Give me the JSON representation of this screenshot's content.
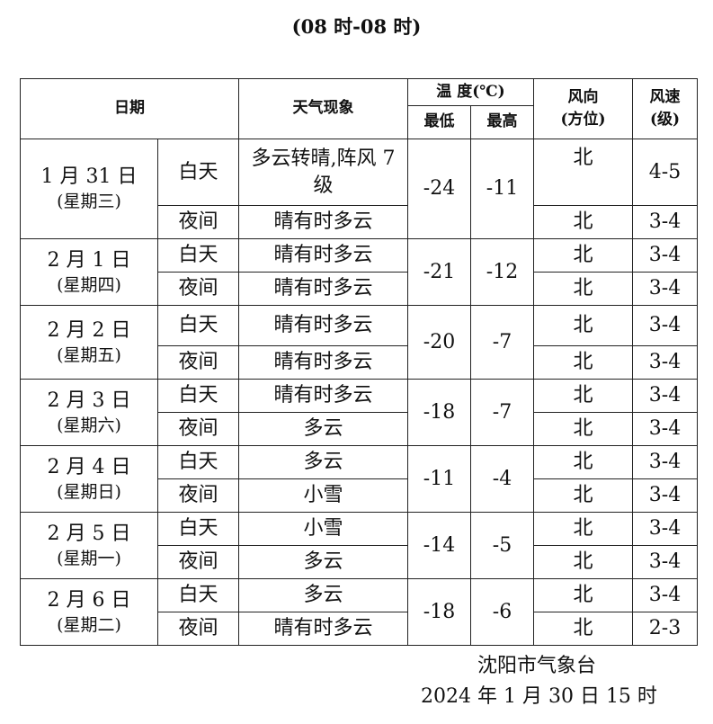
{
  "subtitle": "(08 时-08 时)",
  "headers": {
    "date": "日期",
    "weather": "天气现象",
    "temp": "温  度(℃)",
    "low": "最低",
    "high": "最高",
    "wind_dir": "风向",
    "wind_dir_unit": "(方位)",
    "wind_speed": "风速",
    "wind_speed_unit": "(级)"
  },
  "days": [
    {
      "date": "1 月 31 日",
      "weekday": "(星期三)",
      "low": "-24",
      "high": "-11",
      "periods": [
        {
          "label": "白天",
          "weather": "多云转晴,阵风 7 级",
          "dir": "北",
          "speed": "4-5"
        },
        {
          "label": "夜间",
          "weather": "晴有时多云",
          "dir": "北",
          "speed": "3-4"
        }
      ]
    },
    {
      "date": "2 月 1 日",
      "weekday": "(星期四)",
      "low": "-21",
      "high": "-12",
      "periods": [
        {
          "label": "白天",
          "weather": "晴有时多云",
          "dir": "北",
          "speed": "3-4"
        },
        {
          "label": "夜间",
          "weather": "晴有时多云",
          "dir": "北",
          "speed": "3-4"
        }
      ]
    },
    {
      "date": "2 月 2 日",
      "weekday": "(星期五)",
      "low": "-20",
      "high": "-7",
      "periods": [
        {
          "label": "白天",
          "weather": "晴有时多云",
          "dir": "北",
          "speed": "3-4"
        },
        {
          "label": "夜间",
          "weather": "晴有时多云",
          "dir": "北",
          "speed": "3-4"
        }
      ]
    },
    {
      "date": "2 月 3 日",
      "weekday": "(星期六)",
      "low": "-18",
      "high": "-7",
      "periods": [
        {
          "label": "白天",
          "weather": "晴有时多云",
          "dir": "北",
          "speed": "3-4"
        },
        {
          "label": "夜间",
          "weather": "多云",
          "dir": "北",
          "speed": "3-4"
        }
      ]
    },
    {
      "date": "2 月 4 日",
      "weekday": "(星期日)",
      "low": "-11",
      "high": "-4",
      "periods": [
        {
          "label": "白天",
          "weather": "多云",
          "dir": "北",
          "speed": "3-4"
        },
        {
          "label": "夜间",
          "weather": "小雪",
          "dir": "北",
          "speed": "3-4"
        }
      ]
    },
    {
      "date": "2 月 5 日",
      "weekday": "(星期一)",
      "low": "-14",
      "high": "-5",
      "periods": [
        {
          "label": "白天",
          "weather": "小雪",
          "dir": "北",
          "speed": "3-4"
        },
        {
          "label": "夜间",
          "weather": "多云",
          "dir": "北",
          "speed": "3-4"
        }
      ]
    },
    {
      "date": "2 月 6 日",
      "weekday": "(星期二)",
      "low": "-18",
      "high": "-6",
      "periods": [
        {
          "label": "白天",
          "weather": "多云",
          "dir": "北",
          "speed": "3-4"
        },
        {
          "label": "夜间",
          "weather": "晴有时多云",
          "dir": "北",
          "speed": "2-3"
        }
      ]
    }
  ],
  "footer": {
    "issuer": "沈阳市气象台",
    "issued": "2024 年 1 月 30 日 15 时"
  }
}
